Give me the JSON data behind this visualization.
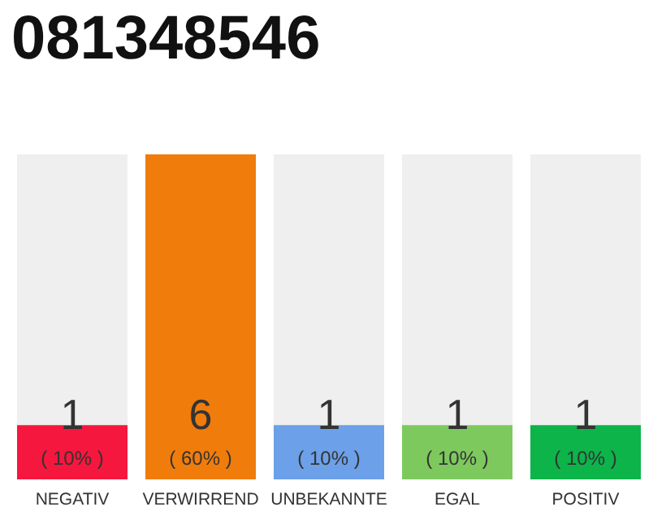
{
  "chart_data": {
    "type": "bar",
    "title": "081348546",
    "categories": [
      "NEGATIV",
      "VERWIRREND",
      "UNBEKANNTE",
      "EGAL",
      "POSITIV"
    ],
    "values": [
      1,
      6,
      1,
      1,
      1
    ],
    "colors": [
      "#f5173d",
      "#f07c0c",
      "#6ca0e8",
      "#7dc95e",
      "#0cb44a"
    ],
    "data_labels": true,
    "annotations": [
      "( 10% )",
      "( 60% )",
      "( 10% )",
      "( 10% )",
      "( 10% )"
    ]
  }
}
